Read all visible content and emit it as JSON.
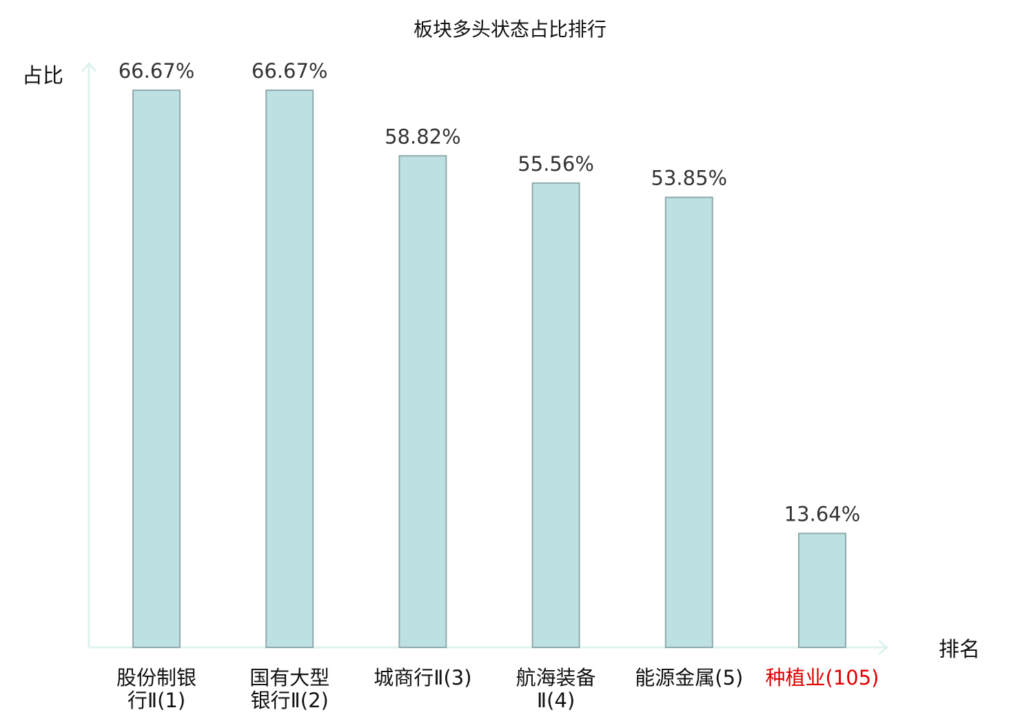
{
  "chart_data": {
    "type": "bar",
    "title": "板块多头状态占比排行",
    "ylabel": "占比",
    "xlabel": "排名",
    "ylim": [
      0,
      66.67
    ],
    "grid": false,
    "categories": [
      [
        "股份制银",
        "行Ⅱ(1)"
      ],
      [
        "国有大型",
        "银行Ⅱ(2)"
      ],
      [
        "城商行Ⅱ(3)"
      ],
      [
        "航海装备",
        "Ⅱ(4)"
      ],
      [
        "能源金属(5)"
      ],
      [
        "种植业(105)"
      ]
    ],
    "values": [
      66.67,
      66.67,
      58.82,
      55.56,
      53.85,
      13.64
    ],
    "value_labels": [
      "66.67%",
      "66.67%",
      "58.82%",
      "55.56%",
      "53.85%",
      "13.64%"
    ],
    "highlight_index": 5
  },
  "colors": {
    "bar_fill": "#bde0e2",
    "bar_stroke": "#8faaab",
    "axis": "#def3ef",
    "text": "#333333",
    "label_text": "#111111",
    "highlight": "#e00000"
  }
}
